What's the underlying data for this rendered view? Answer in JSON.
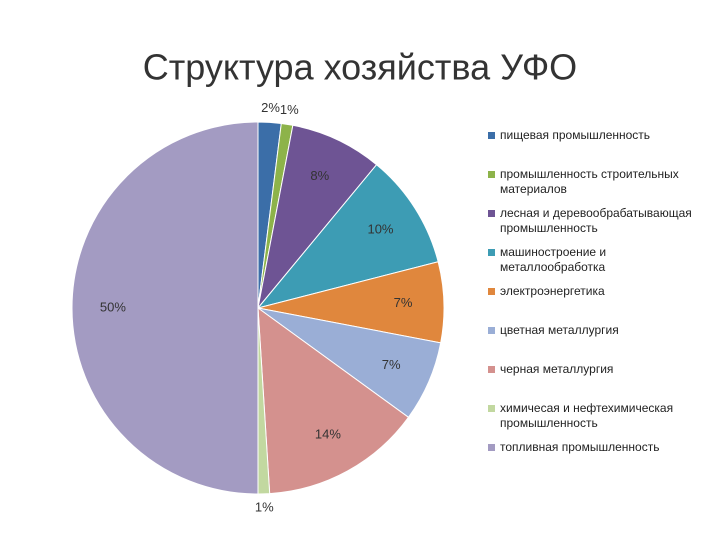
{
  "chart_data": {
    "type": "pie",
    "title": "Структура хозяйства УФО",
    "categories": [
      "пищевая промышленность",
      "промышленность строительных материалов",
      "лесная и деревообрабатывающая промышленность",
      "машиностроение и металлообработка",
      "электроэнергетика",
      "цветная металлургия",
      "черная металлургия",
      "химичесая и нефтехимическая промышленность",
      "топливная промышленность"
    ],
    "values": [
      2,
      1,
      8,
      10,
      7,
      7,
      14,
      1,
      50
    ],
    "value_labels": [
      "2%",
      "1%",
      "8%",
      "10%",
      "7%",
      "7%",
      "14%",
      "1%",
      "50%"
    ],
    "colors": [
      "#3b6ea8",
      "#8db34a",
      "#6e5494",
      "#3d9cb4",
      "#e0873d",
      "#9aaed6",
      "#d4918e",
      "#c2d8a0",
      "#a39bc2"
    ],
    "legend": "right"
  }
}
